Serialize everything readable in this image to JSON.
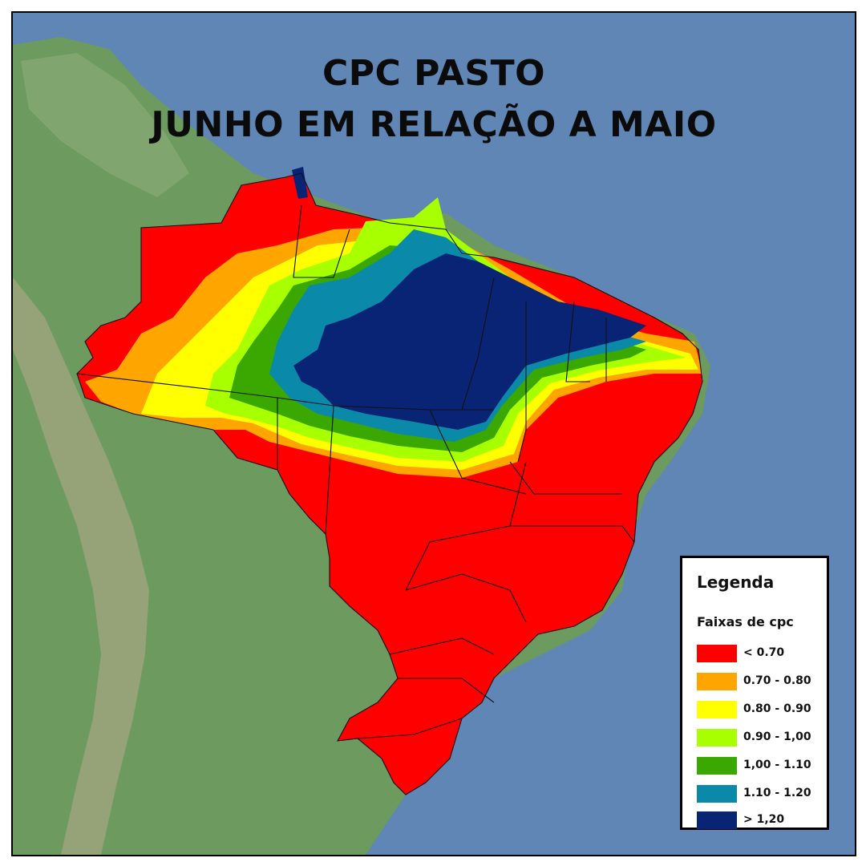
{
  "title_line1": "CPC PASTO",
  "title_line2": "JUNHO EM RELAÇÃO A MAIO",
  "legend": {
    "title": "Legenda",
    "subtitle": "Faixas de cpc",
    "items": [
      {
        "label": "< 0.70",
        "color": "#ff0000"
      },
      {
        "label": "0.70 - 0.80",
        "color": "#ffa500"
      },
      {
        "label": "0.80 - 0.90",
        "color": "#ffff00"
      },
      {
        "label": "0.90 - 1,00",
        "color": "#a8ff00"
      },
      {
        "label": "1,00 - 1.10",
        "color": "#3aa800"
      },
      {
        "label": "1.10 - 1.20",
        "color": "#0a8aa8"
      },
      {
        "label": "> 1,20",
        "color": "#0a2475"
      }
    ]
  },
  "colors": {
    "ocean": "#5f86b4",
    "land": "#6c9a5f"
  }
}
